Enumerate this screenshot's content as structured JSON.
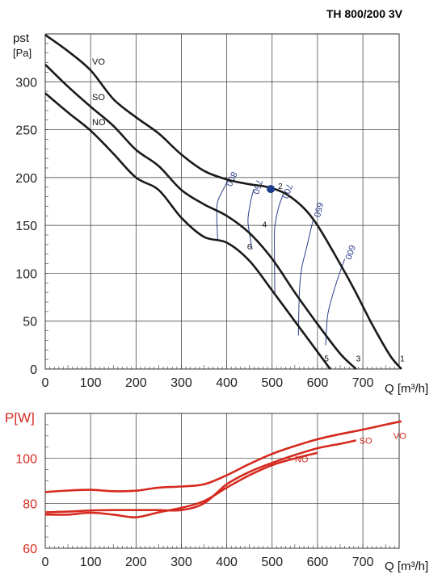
{
  "chart_data": [
    {
      "type": "line",
      "title": "TH 800/200 3V",
      "ylabel_line1": "pst",
      "ylabel_line2": "[Pa]",
      "xlabel": "Q [m³/h]",
      "xlim": [
        0,
        780
      ],
      "ylim": [
        0,
        350
      ],
      "xticks": [
        "0",
        "100",
        "200",
        "300",
        "400",
        "500",
        "600",
        "700"
      ],
      "yticks": [
        "0",
        "50",
        "100",
        "150",
        "200",
        "250",
        "300"
      ],
      "grid": true,
      "series": [
        {
          "name": "VO",
          "x": [
            0,
            50,
            100,
            150,
            200,
            250,
            300,
            350,
            400,
            450,
            490,
            530,
            570,
            600,
            640,
            680,
            720,
            760,
            785
          ],
          "y": [
            349,
            332,
            312,
            282,
            263,
            246,
            224,
            207,
            198,
            193,
            190,
            183,
            168,
            150,
            118,
            84,
            47,
            14,
            0
          ]
        },
        {
          "name": "SO",
          "x": [
            0,
            50,
            100,
            150,
            200,
            250,
            300,
            350,
            400,
            450,
            500,
            550,
            600,
            650,
            685
          ],
          "y": [
            318,
            295,
            274,
            254,
            229,
            212,
            187,
            172,
            160,
            142,
            115,
            80,
            47,
            16,
            0
          ]
        },
        {
          "name": "NO",
          "x": [
            0,
            50,
            100,
            150,
            200,
            250,
            300,
            350,
            400,
            450,
            500,
            550,
            600,
            628
          ],
          "y": [
            288,
            268,
            249,
            225,
            200,
            187,
            158,
            138,
            132,
            113,
            82,
            50,
            18,
            0
          ]
        }
      ],
      "rpm_lines": [
        {
          "label": "800",
          "x": [
            402,
            395,
            380,
            378,
            380
          ],
          "y": [
            197,
            190,
            175,
            160,
            135
          ]
        },
        {
          "label": "750",
          "x": [
            460,
            455,
            449,
            447,
            456
          ],
          "y": [
            188,
            180,
            165,
            152,
            125
          ]
        },
        {
          "label": "700",
          "x": [
            524,
            515,
            508,
            505,
            506
          ],
          "y": [
            182,
            170,
            155,
            140,
            80
          ]
        },
        {
          "label": "650",
          "x": [
            590,
            575,
            565,
            560,
            558
          ],
          "y": [
            155,
            125,
            105,
            80,
            35
          ]
        },
        {
          "label": "600",
          "x": [
            660,
            645,
            632,
            622,
            618
          ],
          "y": [
            115,
            95,
            75,
            55,
            25
          ]
        }
      ],
      "operating_point": {
        "x": 497,
        "y": 188
      },
      "point_labels": [
        {
          "label": "1",
          "x": 787,
          "y": 8
        },
        {
          "label": "2",
          "x": 518,
          "y": 188
        },
        {
          "label": "3",
          "x": 690,
          "y": 8
        },
        {
          "label": "4",
          "x": 483,
          "y": 148
        },
        {
          "label": "5",
          "x": 620,
          "y": 8
        },
        {
          "label": "6",
          "x": 450,
          "y": 125
        }
      ],
      "colors": {
        "curves": "#1a1a1a",
        "rpm": "#2b3f8a",
        "point": "#1f3d8c"
      }
    },
    {
      "type": "line",
      "title": "",
      "ylabel": "P[W]",
      "xlabel": "Q [m³/h]",
      "xlim": [
        0,
        780
      ],
      "ylim": [
        60,
        120
      ],
      "xticks": [
        "0",
        "100",
        "200",
        "300",
        "400",
        "500",
        "600",
        "700"
      ],
      "yticks": [
        "60",
        "80",
        "100"
      ],
      "grid": true,
      "series": [
        {
          "name": "VO",
          "x": [
            0,
            50,
            100,
            150,
            200,
            250,
            300,
            350,
            400,
            450,
            500,
            550,
            600,
            650,
            700,
            750,
            785
          ],
          "y": [
            85,
            85.7,
            86,
            85.4,
            85.6,
            87,
            87.5,
            88.5,
            92.5,
            97.5,
            102,
            105.5,
            108.5,
            110.8,
            112.8,
            115,
            116.5
          ]
        },
        {
          "name": "SO",
          "x": [
            0,
            50,
            100,
            150,
            200,
            250,
            300,
            350,
            400,
            450,
            500,
            550,
            600,
            650,
            685
          ],
          "y": [
            76,
            76.3,
            76.8,
            77,
            77,
            77,
            77,
            80,
            88.5,
            94,
            98,
            101.5,
            104.5,
            106.5,
            108
          ]
        },
        {
          "name": "NO",
          "x": [
            0,
            50,
            100,
            150,
            200,
            250,
            300,
            350,
            400,
            450,
            500,
            550,
            600
          ],
          "y": [
            75,
            75,
            75.8,
            75,
            73.8,
            76,
            78,
            81,
            87,
            92.5,
            97,
            100,
            102.5
          ]
        }
      ],
      "colors": {
        "curves": "#d52a1f"
      }
    }
  ]
}
